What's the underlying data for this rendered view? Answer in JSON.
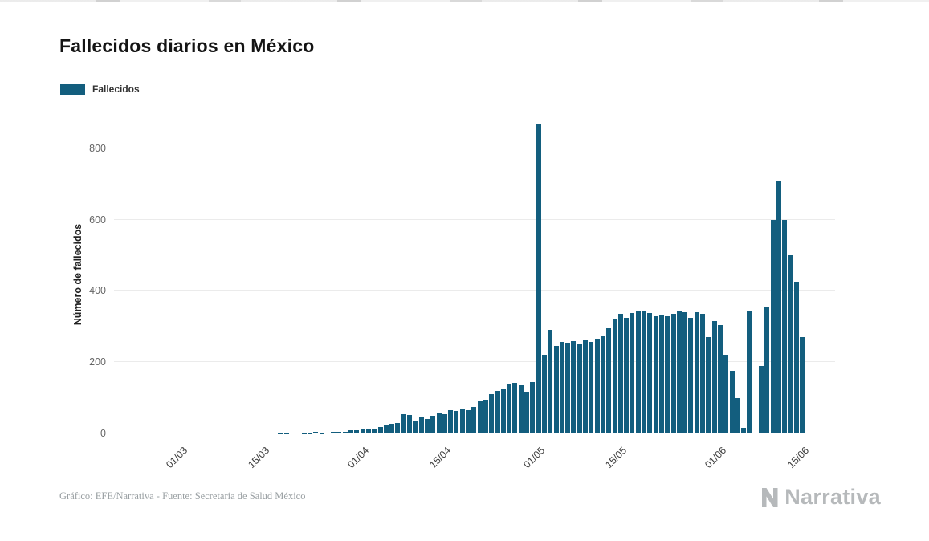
{
  "page": {
    "title": "Fallecidos diarios en México",
    "footer_credit": "Gráfico: EFE/Narrativa - Fuente: Secretaría de Salud México",
    "brand": "Narrativa"
  },
  "legend": {
    "label": "Fallecidos",
    "color": "#135e7e"
  },
  "chart_data": {
    "type": "bar",
    "title": "Fallecidos diarios en México",
    "series_name": "Fallecidos",
    "xlabel": "",
    "ylabel": "Número de fallecidos",
    "ylim": [
      0,
      890
    ],
    "yticks": [
      0,
      200,
      400,
      600,
      800
    ],
    "grid": "horizontal",
    "legend_position": "top-left",
    "bar_color": "#135e7e",
    "xticks": [
      {
        "label": "01/03",
        "index": 11
      },
      {
        "label": "15/03",
        "index": 25
      },
      {
        "label": "01/04",
        "index": 42
      },
      {
        "label": "15/04",
        "index": 56
      },
      {
        "label": "01/05",
        "index": 72
      },
      {
        "label": "15/05",
        "index": 86
      },
      {
        "label": "01/06",
        "index": 103
      },
      {
        "label": "15/06",
        "index": 117
      }
    ],
    "x": [
      "19/02",
      "20/02",
      "21/02",
      "22/02",
      "23/02",
      "24/02",
      "25/02",
      "26/02",
      "27/02",
      "28/02",
      "29/02",
      "01/03",
      "02/03",
      "03/03",
      "04/03",
      "05/03",
      "06/03",
      "07/03",
      "08/03",
      "09/03",
      "10/03",
      "11/03",
      "12/03",
      "13/03",
      "14/03",
      "15/03",
      "16/03",
      "17/03",
      "18/03",
      "19/03",
      "20/03",
      "21/03",
      "22/03",
      "23/03",
      "24/03",
      "25/03",
      "26/03",
      "27/03",
      "28/03",
      "29/03",
      "30/03",
      "31/03",
      "01/04",
      "02/04",
      "03/04",
      "04/04",
      "05/04",
      "06/04",
      "07/04",
      "08/04",
      "09/04",
      "10/04",
      "11/04",
      "12/04",
      "13/04",
      "14/04",
      "15/04",
      "16/04",
      "17/04",
      "18/04",
      "19/04",
      "20/04",
      "21/04",
      "22/04",
      "23/04",
      "24/04",
      "25/04",
      "26/04",
      "27/04",
      "28/04",
      "29/04",
      "30/04",
      "01/05",
      "02/05",
      "03/05",
      "04/05",
      "05/05",
      "06/05",
      "07/05",
      "08/05",
      "09/05",
      "10/05",
      "11/05",
      "12/05",
      "13/05",
      "14/05",
      "15/05",
      "16/05",
      "17/05",
      "18/05",
      "19/05",
      "20/05",
      "21/05",
      "22/05",
      "23/05",
      "24/05",
      "25/05",
      "26/05",
      "27/05",
      "28/05",
      "29/05",
      "30/05",
      "31/05",
      "01/06",
      "02/06",
      "03/06",
      "04/06",
      "05/06",
      "06/06",
      "07/06",
      "08/06",
      "09/06",
      "10/06",
      "11/06",
      "12/06",
      "13/06",
      "14/06",
      "15/06"
    ],
    "values": [
      0,
      0,
      0,
      0,
      0,
      0,
      0,
      0,
      0,
      0,
      0,
      0,
      0,
      0,
      0,
      0,
      0,
      0,
      0,
      0,
      0,
      0,
      0,
      0,
      0,
      0,
      0,
      0,
      1,
      1,
      2,
      2,
      1,
      1,
      4,
      1,
      2,
      4,
      4,
      4,
      8,
      8,
      11,
      12,
      14,
      18,
      22,
      28,
      30,
      55,
      52,
      35,
      45,
      40,
      50,
      58,
      55,
      65,
      62,
      70,
      65,
      75,
      90,
      95,
      110,
      120,
      125,
      140,
      143,
      135,
      117,
      145,
      870,
      220,
      290,
      245,
      258,
      255,
      260,
      252,
      262,
      258,
      265,
      272,
      295,
      320,
      335,
      325,
      338,
      345,
      342,
      338,
      330,
      333,
      330,
      335,
      345,
      340,
      325,
      340,
      335,
      270,
      315,
      305,
      220,
      175,
      100,
      15,
      345,
      0,
      190,
      355,
      600,
      710,
      600,
      500,
      425,
      270
    ]
  }
}
